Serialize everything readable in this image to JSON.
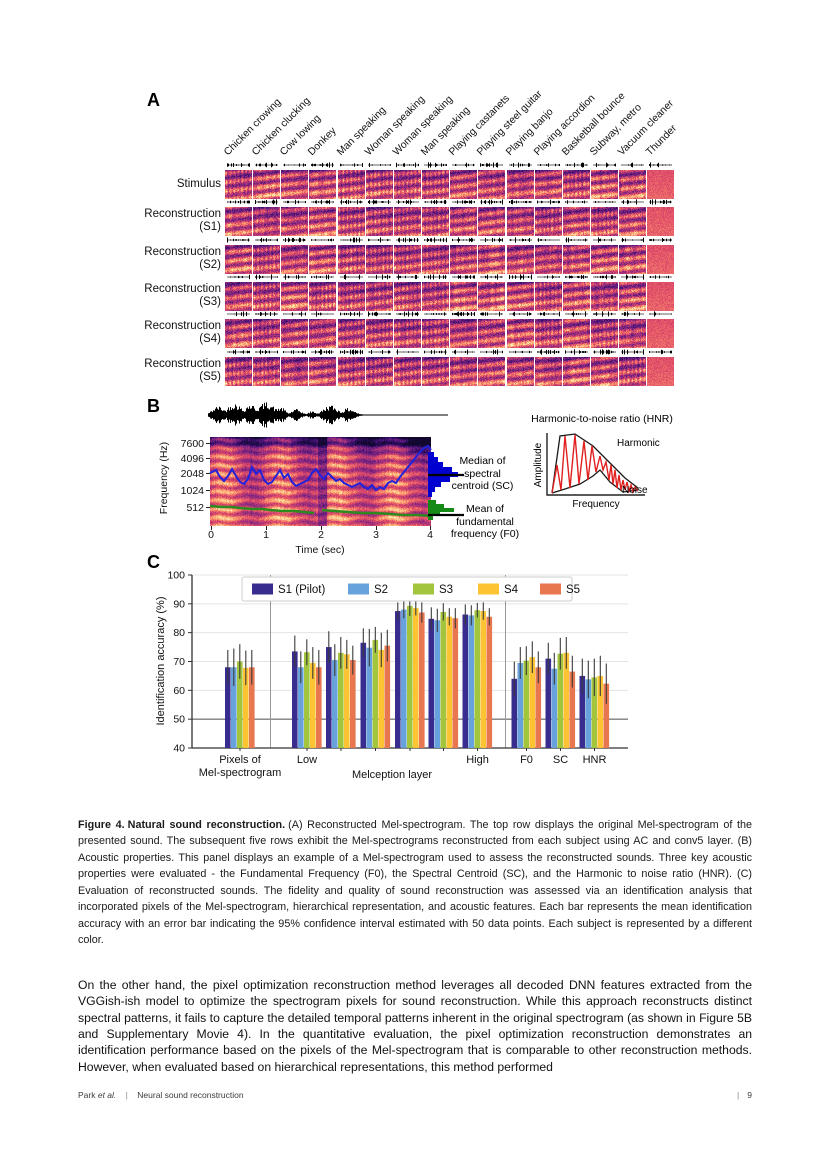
{
  "panelA": {
    "label": "A",
    "column_labels": [
      "Chicken crowing",
      "Chicken clucking",
      "Cow lowing",
      "Donkey",
      "Man speaking",
      "Woman speaking",
      "Woman speaking",
      "Man speaking",
      "Playing castanets",
      "Playing steel guitar",
      "Playing banjo",
      "Playing accordion",
      "Basketball bounce",
      "Subway, metro",
      "Vacuum cleaner",
      "Thunder"
    ],
    "rows": [
      {
        "line1": "Stimulus",
        "line2": ""
      },
      {
        "line1": "Reconstruction",
        "line2": "(S1)"
      },
      {
        "line1": "Reconstruction",
        "line2": "(S2)"
      },
      {
        "line1": "Reconstruction",
        "line2": "(S3)"
      },
      {
        "line1": "Reconstruction",
        "line2": "(S4)"
      },
      {
        "line1": "Reconstruction",
        "line2": "(S5)"
      }
    ]
  },
  "panelB": {
    "label": "B",
    "freq_axis_label": "Frequency (Hz)",
    "freq_ticks": [
      "7600",
      "4096",
      "2048",
      "1024",
      "512"
    ],
    "time_axis_label": "Time (sec)",
    "time_ticks": [
      "0",
      "1",
      "2",
      "3",
      "4"
    ],
    "sc_annotation": [
      "Median of",
      "spectral",
      "centroid (SC)"
    ],
    "f0_annotation": [
      "Mean of",
      "fundamental",
      "frequency (F0)"
    ],
    "hnr": {
      "title": "Harmonic-to-noise ratio (HNR)",
      "ylabel": "Amplitude",
      "xlabel": "Frequency",
      "harmonic_label": "Harmonic",
      "noise_label": "Noise"
    },
    "colors": {
      "sc_line": "#2222dd",
      "f0_line": "#2d8a1e",
      "sc_hist": "#0000d0",
      "f0_hist": "#168a16",
      "hnr_curve": "#e02020"
    }
  },
  "panelC": {
    "label": "C"
  },
  "chart_data": {
    "type": "bar",
    "title": "",
    "ylabel": "Identification accuracy (%)",
    "ylim": [
      40,
      100
    ],
    "yticks": [
      40,
      50,
      60,
      70,
      80,
      90,
      100
    ],
    "chance_line": 50,
    "grid": true,
    "legend_position": "top",
    "categories": [
      "Pixels of\nMel-spectrogram",
      "Low",
      "",
      "",
      "",
      "",
      "High",
      "F0",
      "SC",
      "HNR"
    ],
    "group_axis_label": "Melception layer",
    "series": [
      {
        "name": "S1 (Pilot)",
        "color": "#382c8e",
        "values": [
          68,
          73.5,
          75,
          76.5,
          87.5,
          84.8,
          86.3,
          64,
          71,
          65
        ],
        "errors": [
          6,
          5.5,
          5.5,
          5,
          3,
          4,
          3.5,
          6,
          5.5,
          6
        ]
      },
      {
        "name": "S2",
        "color": "#68a2dc",
        "values": [
          68,
          68,
          70.5,
          74.8,
          88,
          84.3,
          86,
          69.5,
          67.5,
          63.8
        ],
        "errors": [
          6.5,
          5.5,
          5.5,
          6.5,
          3,
          4,
          3.5,
          5.5,
          5.5,
          6.5
        ]
      },
      {
        "name": "S3",
        "color": "#a3c53d",
        "values": [
          70,
          73.2,
          73,
          77.5,
          89.3,
          87.2,
          87.8,
          70.3,
          72.7,
          64.5
        ],
        "errors": [
          6,
          4.5,
          5.5,
          4.5,
          3.5,
          3,
          2.5,
          5,
          5.5,
          6.5
        ]
      },
      {
        "name": "S4",
        "color": "#fcc432",
        "values": [
          67.8,
          69.5,
          72.5,
          74,
          88.5,
          85.5,
          87.5,
          71.5,
          73,
          65
        ],
        "errors": [
          6,
          5.5,
          5,
          6,
          2.5,
          3,
          3,
          5.5,
          5.5,
          7
        ]
      },
      {
        "name": "S5",
        "color": "#e8764f",
        "values": [
          68,
          68,
          70.5,
          75.5,
          87,
          85,
          85.5,
          68,
          66.5,
          62.3
        ],
        "errors": [
          6,
          6,
          5,
          5.5,
          3.5,
          3.5,
          3,
          5.5,
          5.5,
          7
        ]
      }
    ]
  },
  "caption": {
    "label": "Figure 4.",
    "title": "Natural sound reconstruction.",
    "text": "(A) Reconstructed Mel-spectrogram.  The top row displays the original Mel-spectrogram of the presented sound.  The subsequent five rows exhibit the Mel-spectrograms reconstructed from each subject using AC and conv5 layer.  (B) Acoustic properties.  This panel displays an example of a Mel-spectrogram used to assess the reconstructed sounds. Three key acoustic properties were evaluated - the Fundamental Frequency (F0), the Spectral Centroid (SC), and the Harmonic to noise ratio (HNR). (C) Evaluation of reconstructed sounds.  The fidelity and quality of sound reconstruction was assessed via an identification analysis that incorporated pixels of the Mel-spectrogram, hierarchical representation, and acoustic features. Each bar represents the mean identification accuracy with an error bar indicating the 95% confidence interval estimated with 50 data points. Each subject is represented by a different color."
  },
  "body_text": "On the other hand, the pixel optimization reconstruction method leverages all decoded DNN features extracted from the VGGish-ish model to optimize the spectrogram pixels for sound reconstruction.  While this approach reconstructs distinct spectral patterns, it fails to capture the detailed temporal patterns inherent in the original spectrogram (as shown in Figure 5B and Supplementary Movie 4).  In the quantitative evaluation, the pixel optimization reconstruction demonstrates an identification performance based on the pixels of the Mel-spectrogram that is comparable to other reconstruction methods.  However, when evaluated based on hierarchical representations, this method performed",
  "footer": {
    "author": "Park",
    "etal": "et al.",
    "sep": "|",
    "running_title": "Neural sound reconstruction",
    "page_sep": "|",
    "page_num": "9"
  }
}
